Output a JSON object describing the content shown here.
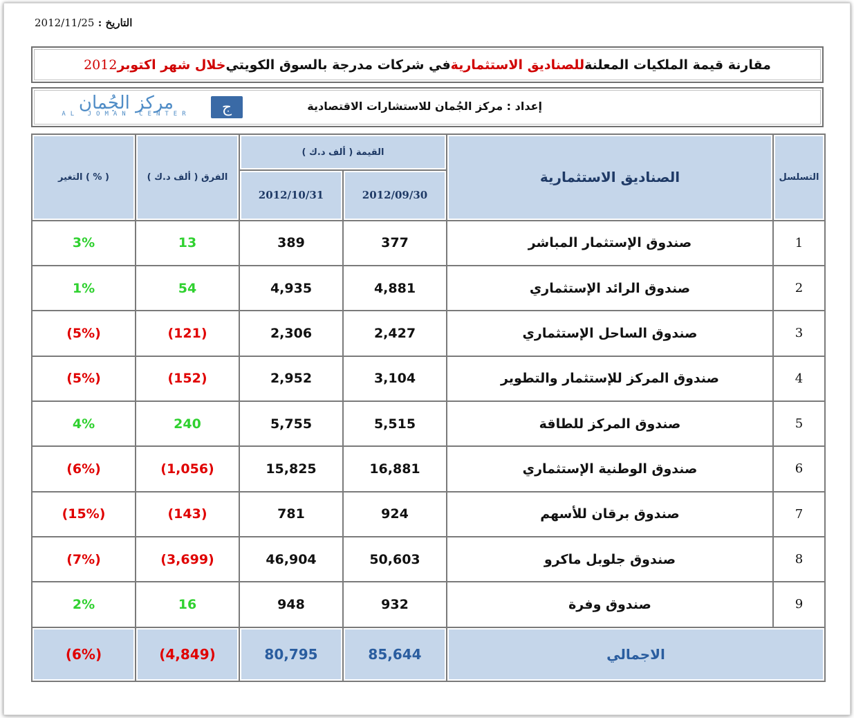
{
  "header": {
    "date_label": "التاريخ :",
    "date_value": "2012/11/25"
  },
  "title": {
    "part1": "مقارنة قيمة الملكيات المعلنة ",
    "part2_red": "للصناديق الاستثمارية",
    "part3": " في شركات مدرجة بالسوق الكويتي ",
    "part4_red": "خلال شهر اكتوبر",
    "year": " 2012"
  },
  "prepared": {
    "text": "إعداد : مركز الجُمان للاستشارات الاقتصادية",
    "logo_arabic": "مركز الجُمان",
    "logo_english": "AL JOMAN CENTER",
    "logo_mark": "ج"
  },
  "table": {
    "headers": {
      "seq": "التسلسل",
      "funds": "الصناديق الاستثمارية",
      "value": "القيمة ( ألف د.ك )",
      "date1": "2012/09/30",
      "date2": "2012/10/31",
      "diff": "الفرق ( ألف د.ك )",
      "change": "التغير ( % )"
    },
    "rows": [
      {
        "seq": "1",
        "name": "صندوق الإستثمار المباشر",
        "v1": "377",
        "v2": "389",
        "diff": "13",
        "change": "3%",
        "status": "up"
      },
      {
        "seq": "2",
        "name": "صندوق الرائد الإستثماري",
        "v1": "4,881",
        "v2": "4,935",
        "diff": "54",
        "change": "1%",
        "status": "up"
      },
      {
        "seq": "3",
        "name": "صندوق الساحل الإستثماري",
        "v1": "2,427",
        "v2": "2,306",
        "diff": "(121)",
        "change": "(5%)",
        "status": "down"
      },
      {
        "seq": "4",
        "name": "صندوق المركز للإستثمار والتطوير",
        "v1": "3,104",
        "v2": "2,952",
        "diff": "(152)",
        "change": "(5%)",
        "status": "down"
      },
      {
        "seq": "5",
        "name": "صندوق المركز للطاقة",
        "v1": "5,515",
        "v2": "5,755",
        "diff": "240",
        "change": "4%",
        "status": "up"
      },
      {
        "seq": "6",
        "name": "صندوق الوطنية الإستثماري",
        "v1": "16,881",
        "v2": "15,825",
        "diff": "(1,056)",
        "change": "(6%)",
        "status": "down"
      },
      {
        "seq": "7",
        "name": "صندوق برقان للأسهم",
        "v1": "924",
        "v2": "781",
        "diff": "(143)",
        "change": "(15%)",
        "status": "down"
      },
      {
        "seq": "8",
        "name": "صندوق جلوبل ماكرو",
        "v1": "50,603",
        "v2": "46,904",
        "diff": "(3,699)",
        "change": "(7%)",
        "status": "down"
      },
      {
        "seq": "9",
        "name": "صندوق وفرة",
        "v1": "932",
        "v2": "948",
        "diff": "16",
        "change": "2%",
        "status": "up"
      }
    ],
    "total": {
      "name": "الاجمالي",
      "v1": "85,644",
      "v2": "80,795",
      "diff": "(4,849)",
      "change": "(6%)"
    }
  },
  "colors": {
    "header_bg": "#c5d6ea",
    "header_text": "#1f3a66",
    "positive": "#2fd12f",
    "negative": "#e00000",
    "title_red": "#d00000",
    "total_text": "#2a5d9f"
  }
}
